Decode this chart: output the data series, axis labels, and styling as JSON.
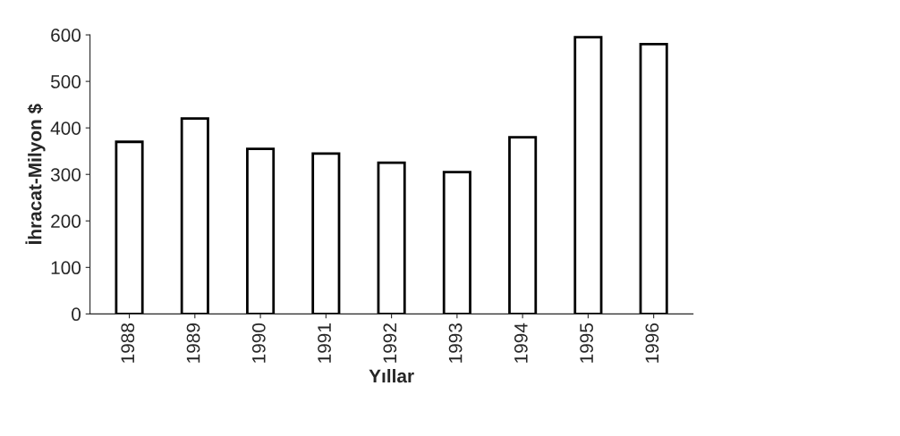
{
  "chart_data": {
    "type": "bar",
    "xlabel": "Yıllar",
    "ylabel": "İhracat-Milyon $",
    "categories": [
      "1988",
      "1989",
      "1990",
      "1991",
      "1992",
      "1993",
      "1994",
      "1995",
      "1996"
    ],
    "values": [
      370,
      420,
      355,
      345,
      325,
      305,
      380,
      595,
      580
    ],
    "color": "#ffffff",
    "ylim": [
      0,
      600
    ],
    "yticks": [
      0,
      100,
      200,
      300,
      400,
      500,
      600
    ],
    "grid": false
  }
}
